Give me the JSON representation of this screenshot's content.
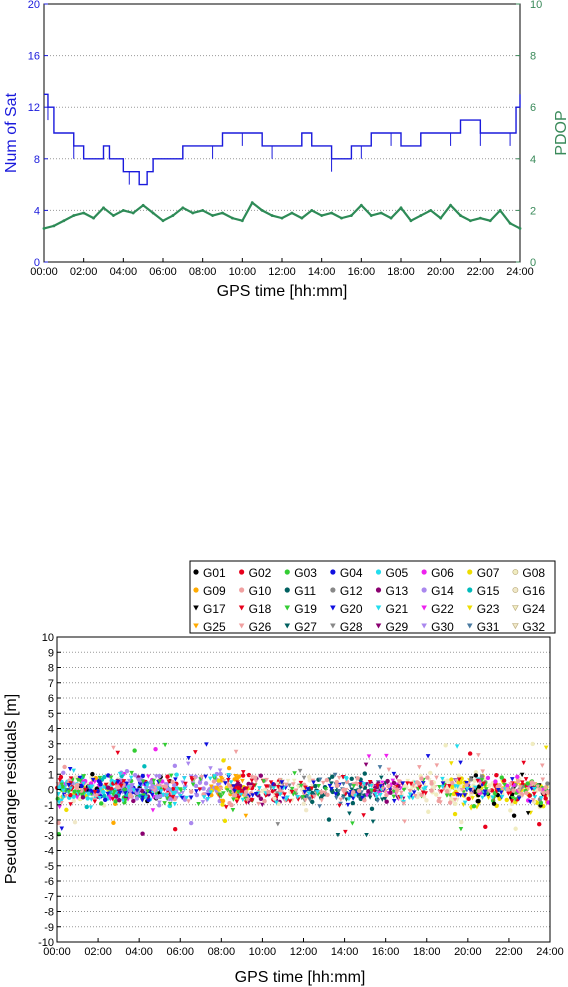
{
  "chart_data": [
    {
      "type": "line",
      "xlabel": "GPS time [hh:mm]",
      "ylabel": "Num of Sat",
      "y2label": "PDOP",
      "xticks": [
        "00:00",
        "02:00",
        "04:00",
        "06:00",
        "08:00",
        "10:00",
        "12:00",
        "14:00",
        "16:00",
        "18:00",
        "20:00",
        "22:00",
        "24:00"
      ],
      "ylim": [
        0,
        20
      ],
      "yticks": [
        0,
        4,
        8,
        12,
        16,
        20
      ],
      "y2lim": [
        0,
        10
      ],
      "y2ticks": [
        0,
        2,
        4,
        6,
        8,
        10
      ],
      "grid": "horizontal dotted",
      "colors": {
        "left_axis": "#1a1adc",
        "right_axis": "#3a8a5a",
        "nsat": "#1a1adc",
        "pdop": "#2e8b57"
      },
      "series": [
        {
          "axis": "left",
          "x_hours": [
            0,
            0.2,
            0.5,
            1.0,
            1.5,
            2.0,
            2.5,
            3.0,
            3.3,
            4.0,
            4.3,
            4.8,
            5.2,
            5.5,
            6.0,
            6.5,
            7.0,
            7.5,
            8.0,
            8.5,
            9.0,
            9.5,
            10.0,
            10.5,
            11.0,
            11.5,
            12.0,
            12.5,
            13.0,
            13.5,
            14.0,
            14.5,
            15.0,
            15.5,
            16.0,
            16.5,
            17.0,
            17.5,
            18.0,
            18.5,
            19.0,
            19.5,
            20.0,
            20.5,
            21.0,
            21.5,
            22.0,
            22.5,
            23.0,
            23.5,
            23.8,
            24.0
          ],
          "values": [
            13,
            12,
            10,
            10,
            9,
            8,
            8,
            9,
            8,
            7,
            7,
            6,
            7,
            8,
            8,
            8,
            9,
            9,
            9,
            9,
            10,
            10,
            10,
            10,
            9,
            9,
            9,
            9,
            10,
            9,
            9,
            8,
            8,
            9,
            9,
            10,
            10,
            10,
            9,
            9,
            10,
            10,
            10,
            10,
            11,
            11,
            10,
            10,
            10,
            10,
            12,
            13
          ]
        },
        {
          "axis": "right",
          "x_hours": [
            0,
            0.5,
            1.0,
            1.5,
            2.0,
            2.5,
            3.0,
            3.5,
            4.0,
            4.5,
            5.0,
            5.5,
            6.0,
            6.5,
            7.0,
            7.5,
            8.0,
            8.5,
            9.0,
            9.5,
            10.0,
            10.5,
            11.0,
            11.5,
            12.0,
            12.5,
            13.0,
            13.5,
            14.0,
            14.5,
            15.0,
            15.5,
            16.0,
            16.5,
            17.0,
            17.5,
            18.0,
            18.5,
            19.0,
            19.5,
            20.0,
            20.5,
            21.0,
            21.5,
            22.0,
            22.5,
            23.0,
            23.5,
            24.0
          ],
          "values": [
            1.3,
            1.4,
            1.6,
            1.8,
            1.9,
            1.7,
            2.1,
            1.8,
            2.0,
            1.9,
            2.2,
            1.9,
            1.6,
            1.8,
            2.1,
            1.9,
            2.0,
            1.8,
            1.9,
            1.7,
            1.6,
            2.3,
            2.0,
            1.8,
            1.7,
            1.9,
            1.7,
            2.0,
            1.8,
            1.9,
            1.7,
            1.8,
            2.2,
            1.8,
            1.9,
            1.7,
            2.1,
            1.6,
            1.8,
            2.0,
            1.7,
            2.2,
            1.8,
            1.6,
            1.7,
            1.6,
            2.0,
            1.5,
            1.3
          ]
        }
      ]
    },
    {
      "type": "scatter",
      "xlabel": "GPS time [hh:mm]",
      "ylabel": "Pseudorange residuals [m]",
      "xticks": [
        "00:00",
        "02:00",
        "04:00",
        "06:00",
        "08:00",
        "10:00",
        "12:00",
        "14:00",
        "16:00",
        "18:00",
        "20:00",
        "22:00",
        "24:00"
      ],
      "ylim": [
        -10,
        10
      ],
      "yticks": [
        -10,
        -9,
        -8,
        -7,
        -6,
        -5,
        -4,
        -3,
        -2,
        -1,
        0,
        1,
        2,
        3,
        4,
        5,
        6,
        7,
        8,
        9,
        10
      ],
      "grid": "horizontal dotted",
      "legend_position": "top-right",
      "series": [
        {
          "name": "G01",
          "color": "#000000",
          "marker": "circle"
        },
        {
          "name": "G02",
          "color": "#e8001c",
          "marker": "circle"
        },
        {
          "name": "G03",
          "color": "#33cc33",
          "marker": "circle"
        },
        {
          "name": "G04",
          "color": "#1010e0",
          "marker": "circle"
        },
        {
          "name": "G05",
          "color": "#22ddee",
          "marker": "circle"
        },
        {
          "name": "G06",
          "color": "#ee22ee",
          "marker": "circle"
        },
        {
          "name": "G07",
          "color": "#eedd00",
          "marker": "circle"
        },
        {
          "name": "G08",
          "color": "#f0ecc0",
          "marker": "circle"
        },
        {
          "name": "G09",
          "color": "#ffaa00",
          "marker": "circle"
        },
        {
          "name": "G10",
          "color": "#f0a0a0",
          "marker": "circle"
        },
        {
          "name": "G11",
          "color": "#006060",
          "marker": "circle"
        },
        {
          "name": "G12",
          "color": "#888888",
          "marker": "circle"
        },
        {
          "name": "G13",
          "color": "#8a0070",
          "marker": "circle"
        },
        {
          "name": "G14",
          "color": "#aa88ee",
          "marker": "circle"
        },
        {
          "name": "G15",
          "color": "#00bbbb",
          "marker": "circle"
        },
        {
          "name": "G16",
          "color": "#f0e8c8",
          "marker": "circle"
        },
        {
          "name": "G17",
          "color": "#000000",
          "marker": "triangle"
        },
        {
          "name": "G18",
          "color": "#e8001c",
          "marker": "triangle"
        },
        {
          "name": "G19",
          "color": "#33cc33",
          "marker": "triangle"
        },
        {
          "name": "G20",
          "color": "#1010e0",
          "marker": "triangle"
        },
        {
          "name": "G21",
          "color": "#22ddee",
          "marker": "triangle"
        },
        {
          "name": "G22",
          "color": "#ee22ee",
          "marker": "triangle"
        },
        {
          "name": "G23",
          "color": "#eedd00",
          "marker": "triangle"
        },
        {
          "name": "G24",
          "color": "#f0ecc0",
          "marker": "triangle"
        },
        {
          "name": "G25",
          "color": "#ffaa00",
          "marker": "triangle"
        },
        {
          "name": "G26",
          "color": "#f0a0a0",
          "marker": "triangle"
        },
        {
          "name": "G27",
          "color": "#006060",
          "marker": "triangle"
        },
        {
          "name": "G28",
          "color": "#888888",
          "marker": "triangle"
        },
        {
          "name": "G29",
          "color": "#8a0070",
          "marker": "triangle"
        },
        {
          "name": "G30",
          "color": "#aa88ee",
          "marker": "triangle"
        },
        {
          "name": "G31",
          "color": "#4a7aa0",
          "marker": "triangle"
        },
        {
          "name": "G32",
          "color": "#f0e8c8",
          "marker": "triangle"
        }
      ]
    }
  ]
}
